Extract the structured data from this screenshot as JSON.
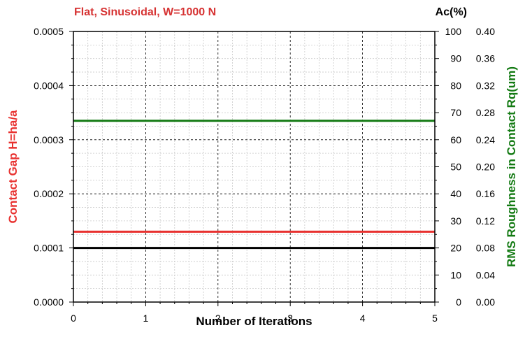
{
  "chart_data": {
    "type": "line",
    "title": "Flat, Sinusoidal, W=1000 N",
    "right_title": "Ac(%)",
    "xlabel": "Number of Iterations",
    "ylabel_left": "Contact Gap H=ha/a",
    "ylabel_right": "RMS Roughness in Contact Rq(um)",
    "xlim": [
      0,
      5
    ],
    "x_ticks": [
      "0",
      "1",
      "2",
      "3",
      "4",
      "5"
    ],
    "left_axis": {
      "ylim": [
        0,
        0.0005
      ],
      "ticks": [
        "0.0000",
        "0.0001",
        "0.0002",
        "0.0003",
        "0.0004",
        "0.0005"
      ]
    },
    "ac_axis": {
      "ylim": [
        0,
        100
      ],
      "ticks": [
        "0",
        "10",
        "20",
        "30",
        "40",
        "50",
        "60",
        "70",
        "80",
        "90",
        "100"
      ]
    },
    "rq_axis": {
      "ylim": [
        0,
        0.4
      ],
      "ticks": [
        "0.00",
        "0.04",
        "0.08",
        "0.12",
        "0.16",
        "0.20",
        "0.24",
        "0.28",
        "0.32",
        "0.36",
        "0.40"
      ]
    },
    "grid": true,
    "series": [
      {
        "axis": "left",
        "color": "#e8312f",
        "x": [
          0,
          5
        ],
        "y": [
          0.00013,
          0.00013
        ]
      },
      {
        "axis": "ac",
        "color": "#000000",
        "x": [
          0,
          5
        ],
        "y": [
          20,
          20
        ]
      },
      {
        "axis": "rq",
        "color": "#137a13",
        "x": [
          0,
          5
        ],
        "y": [
          0.268,
          0.268
        ]
      }
    ]
  },
  "colors": {
    "title": "#d63333",
    "left_label": "#e8312f",
    "right_label": "#137a13"
  }
}
